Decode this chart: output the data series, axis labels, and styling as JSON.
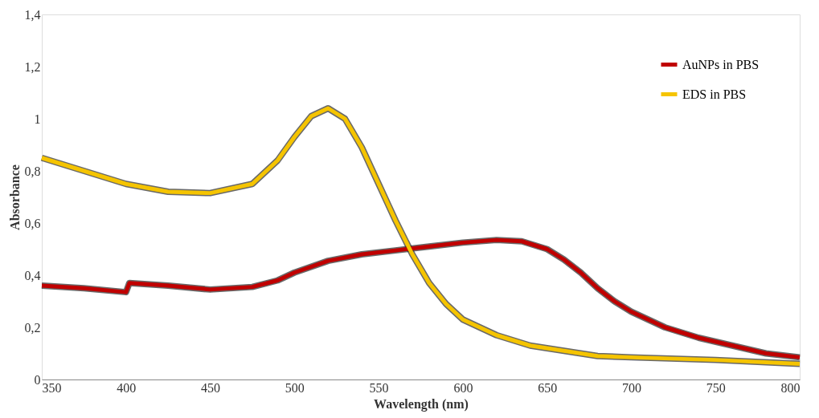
{
  "chart_data": {
    "type": "line",
    "xlabel": "Wavelength (nm)",
    "ylabel": "Absorbance",
    "xlim": [
      350,
      800
    ],
    "xticks": [
      350,
      400,
      450,
      500,
      550,
      600,
      650,
      700,
      750,
      800
    ],
    "ylim": [
      0,
      1.4
    ],
    "yticks": [
      0,
      {
        "value": 0.2,
        "label": "0,2"
      },
      {
        "value": 0.4,
        "label": "0,4"
      },
      {
        "value": 0.6,
        "label": "0,6"
      },
      {
        "value": 0.8,
        "label": "0,8"
      },
      1,
      {
        "value": 1.2,
        "label": "1,2"
      },
      {
        "value": 1.4,
        "label": "1,4"
      }
    ],
    "grid": false,
    "legend": "top right",
    "marker": "none",
    "line_style": "solid",
    "series": [
      {
        "name": "AuNPs in PBS",
        "color": "#c00000",
        "x": [
          350,
          375,
          400,
          402,
          425,
          450,
          475,
          490,
          500,
          520,
          540,
          560,
          580,
          600,
          620,
          635,
          650,
          660,
          670,
          680,
          690,
          700,
          720,
          740,
          760,
          780,
          800
        ],
        "values": [
          0.36,
          0.35,
          0.335,
          0.37,
          0.36,
          0.345,
          0.355,
          0.38,
          0.41,
          0.455,
          0.48,
          0.495,
          0.51,
          0.525,
          0.535,
          0.53,
          0.5,
          0.46,
          0.41,
          0.35,
          0.3,
          0.26,
          0.2,
          0.16,
          0.13,
          0.1,
          0.085
        ]
      },
      {
        "name": "EDS in PBS",
        "color": "#f5c400",
        "x": [
          350,
          375,
          400,
          425,
          450,
          475,
          490,
          500,
          510,
          520,
          530,
          540,
          550,
          560,
          570,
          580,
          590,
          600,
          620,
          640,
          660,
          680,
          700,
          750,
          800
        ],
        "values": [
          0.85,
          0.8,
          0.75,
          0.72,
          0.715,
          0.75,
          0.84,
          0.93,
          1.01,
          1.04,
          1.0,
          0.89,
          0.75,
          0.61,
          0.48,
          0.37,
          0.29,
          0.23,
          0.17,
          0.13,
          0.11,
          0.09,
          0.085,
          0.075,
          0.06
        ]
      }
    ]
  }
}
